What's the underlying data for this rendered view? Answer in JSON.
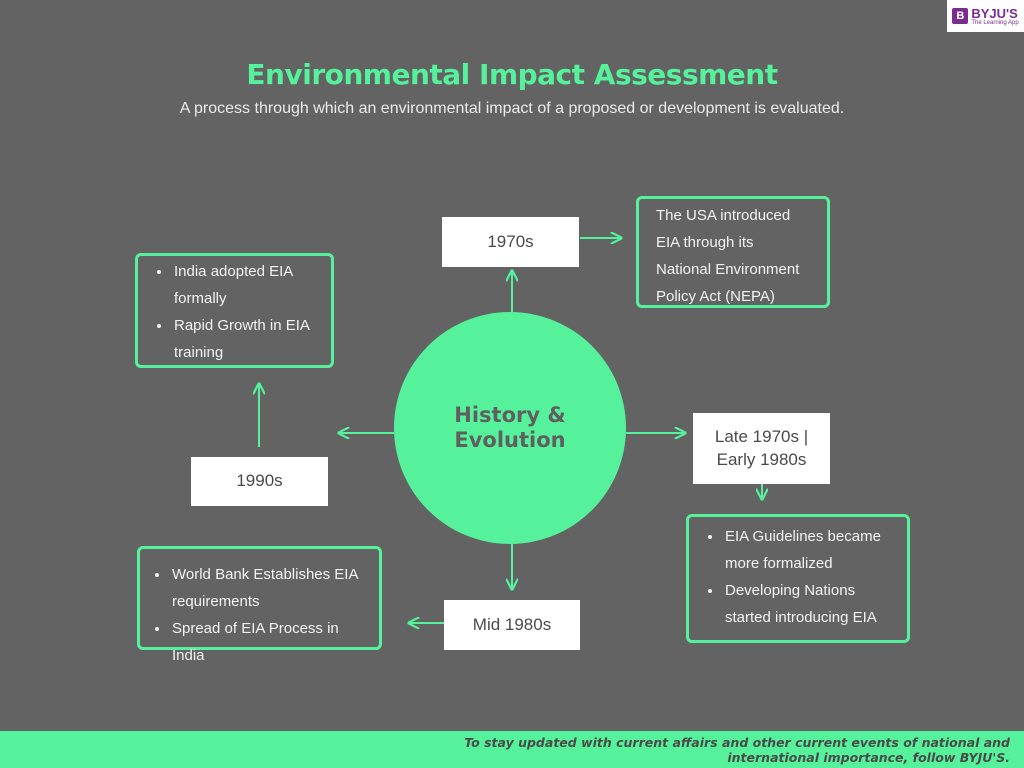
{
  "logo": {
    "brand": "BYJU'S",
    "tagline": "The Learning App"
  },
  "title": "Environmental Impact Assessment",
  "subtitle": "A process through which an environmental impact of a proposed or development is evaluated.",
  "center": {
    "label": "History & Evolution"
  },
  "eras": {
    "e1970s": "1970s",
    "late1970s_line1": "Late 1970s |",
    "late1970s_line2": "Early 1980s",
    "mid1980s": "Mid 1980s",
    "e1990s": "1990s"
  },
  "notes": {
    "usa": [
      "The USA introduced",
      "EIA through its",
      "National Environment",
      "Policy Act (NEPA)"
    ],
    "late1970s": [
      "EIA Guidelines  became more formalized",
      "Developing Nations started introducing EIA"
    ],
    "mid1980s": [
      "World Bank Establishes EIA requirements",
      "Spread of EIA Process in India"
    ],
    "e1990s": [
      "India adopted EIA formally",
      "Rapid Growth in EIA training"
    ]
  },
  "footer": {
    "line1": "To stay updated with current affairs and other current events of national and",
    "line2": "international importance, follow BYJU'S."
  },
  "colors": {
    "accent": "#56f29b",
    "background": "#636363",
    "box": "#ffffff"
  }
}
